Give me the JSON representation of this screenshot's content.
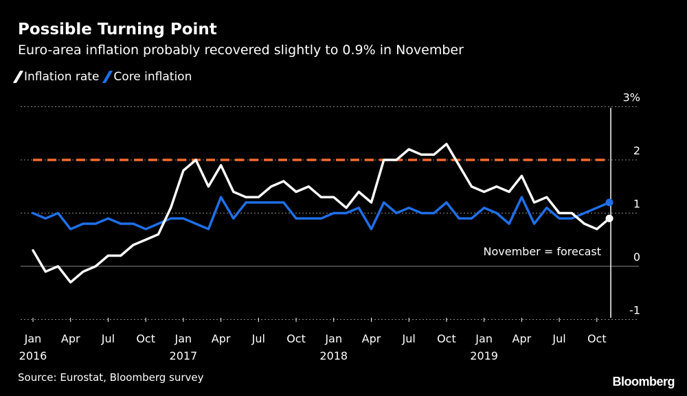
{
  "header": {
    "title": "Possible Turning Point",
    "subtitle": "Euro-area inflation probably recovered slightly to 0.9% in November"
  },
  "footer": {
    "source": "Source: Eurostat, Bloomberg survey",
    "logo": "Bloomberg"
  },
  "colors": {
    "background": "#000000",
    "inflation": "#ffffff",
    "core": "#1f6fe8",
    "target_line": "#f26a2f",
    "grid": "#8a8a8a"
  },
  "chart_data": {
    "type": "line",
    "title": "Possible Turning Point",
    "subtitle": "Euro-area inflation probably recovered slightly to 0.9% in November",
    "ylim": [
      -1.2,
      3
    ],
    "y_ticks": [
      -1,
      0,
      1,
      2,
      3
    ],
    "y_tick_labels": [
      "-1",
      "0",
      "1",
      "2",
      "3%"
    ],
    "y_axis_side": "right",
    "grid": "dotted horizontal",
    "legend_position": "top-left",
    "x_tick_labels": [
      {
        "index": 0,
        "label": "Jan",
        "year": "2016"
      },
      {
        "index": 3,
        "label": "Apr",
        "year": ""
      },
      {
        "index": 6,
        "label": "Jul",
        "year": ""
      },
      {
        "index": 9,
        "label": "Oct",
        "year": ""
      },
      {
        "index": 12,
        "label": "Jan",
        "year": "2017"
      },
      {
        "index": 15,
        "label": "Apr",
        "year": ""
      },
      {
        "index": 18,
        "label": "Jul",
        "year": ""
      },
      {
        "index": 21,
        "label": "Oct",
        "year": ""
      },
      {
        "index": 24,
        "label": "Jan",
        "year": "2018"
      },
      {
        "index": 27,
        "label": "Apr",
        "year": ""
      },
      {
        "index": 30,
        "label": "Jul",
        "year": ""
      },
      {
        "index": 33,
        "label": "Oct",
        "year": ""
      },
      {
        "index": 36,
        "label": "Jan",
        "year": "2019"
      },
      {
        "index": 39,
        "label": "Apr",
        "year": ""
      },
      {
        "index": 42,
        "label": "Jul",
        "year": ""
      },
      {
        "index": 45,
        "label": "Oct",
        "year": ""
      }
    ],
    "x": [
      "Jan 2016",
      "Feb 2016",
      "Mar 2016",
      "Apr 2016",
      "May 2016",
      "Jun 2016",
      "Jul 2016",
      "Aug 2016",
      "Sep 2016",
      "Oct 2016",
      "Nov 2016",
      "Dec 2016",
      "Jan 2017",
      "Feb 2017",
      "Mar 2017",
      "Apr 2017",
      "May 2017",
      "Jun 2017",
      "Jul 2017",
      "Aug 2017",
      "Sep 2017",
      "Oct 2017",
      "Nov 2017",
      "Dec 2017",
      "Jan 2018",
      "Feb 2018",
      "Mar 2018",
      "Apr 2018",
      "May 2018",
      "Jun 2018",
      "Jul 2018",
      "Aug 2018",
      "Sep 2018",
      "Oct 2018",
      "Nov 2018",
      "Dec 2018",
      "Jan 2019",
      "Feb 2019",
      "Mar 2019",
      "Apr 2019",
      "May 2019",
      "Jun 2019",
      "Jul 2019",
      "Aug 2019",
      "Sep 2019",
      "Oct 2019",
      "Nov 2019"
    ],
    "series": [
      {
        "name": "Inflation rate",
        "color": "#ffffff",
        "values": [
          0.3,
          -0.1,
          0.0,
          -0.3,
          -0.1,
          0.0,
          0.2,
          0.2,
          0.4,
          0.5,
          0.6,
          1.1,
          1.8,
          2.0,
          1.5,
          1.9,
          1.4,
          1.3,
          1.3,
          1.5,
          1.6,
          1.4,
          1.5,
          1.3,
          1.3,
          1.1,
          1.4,
          1.2,
          2.0,
          2.0,
          2.2,
          2.1,
          2.1,
          2.3,
          1.9,
          1.5,
          1.4,
          1.5,
          1.4,
          1.7,
          1.2,
          1.3,
          1.0,
          1.0,
          0.8,
          0.7,
          0.9
        ]
      },
      {
        "name": "Core inflation",
        "color": "#1f6fe8",
        "values": [
          1.0,
          0.9,
          1.0,
          0.7,
          0.8,
          0.8,
          0.9,
          0.8,
          0.8,
          0.7,
          0.8,
          0.9,
          0.9,
          0.8,
          0.7,
          1.3,
          0.9,
          1.2,
          1.2,
          1.2,
          1.2,
          0.9,
          0.9,
          0.9,
          1.0,
          1.0,
          1.1,
          0.7,
          1.2,
          1.0,
          1.1,
          1.0,
          1.0,
          1.2,
          0.9,
          0.9,
          1.1,
          1.0,
          0.8,
          1.3,
          0.8,
          1.1,
          0.9,
          0.9,
          1.0,
          1.1,
          1.2
        ]
      }
    ],
    "reference_line": {
      "value": 2.0,
      "style": "dashed"
    },
    "forecast_divider_index": 46,
    "annotation": "November = forecast"
  }
}
